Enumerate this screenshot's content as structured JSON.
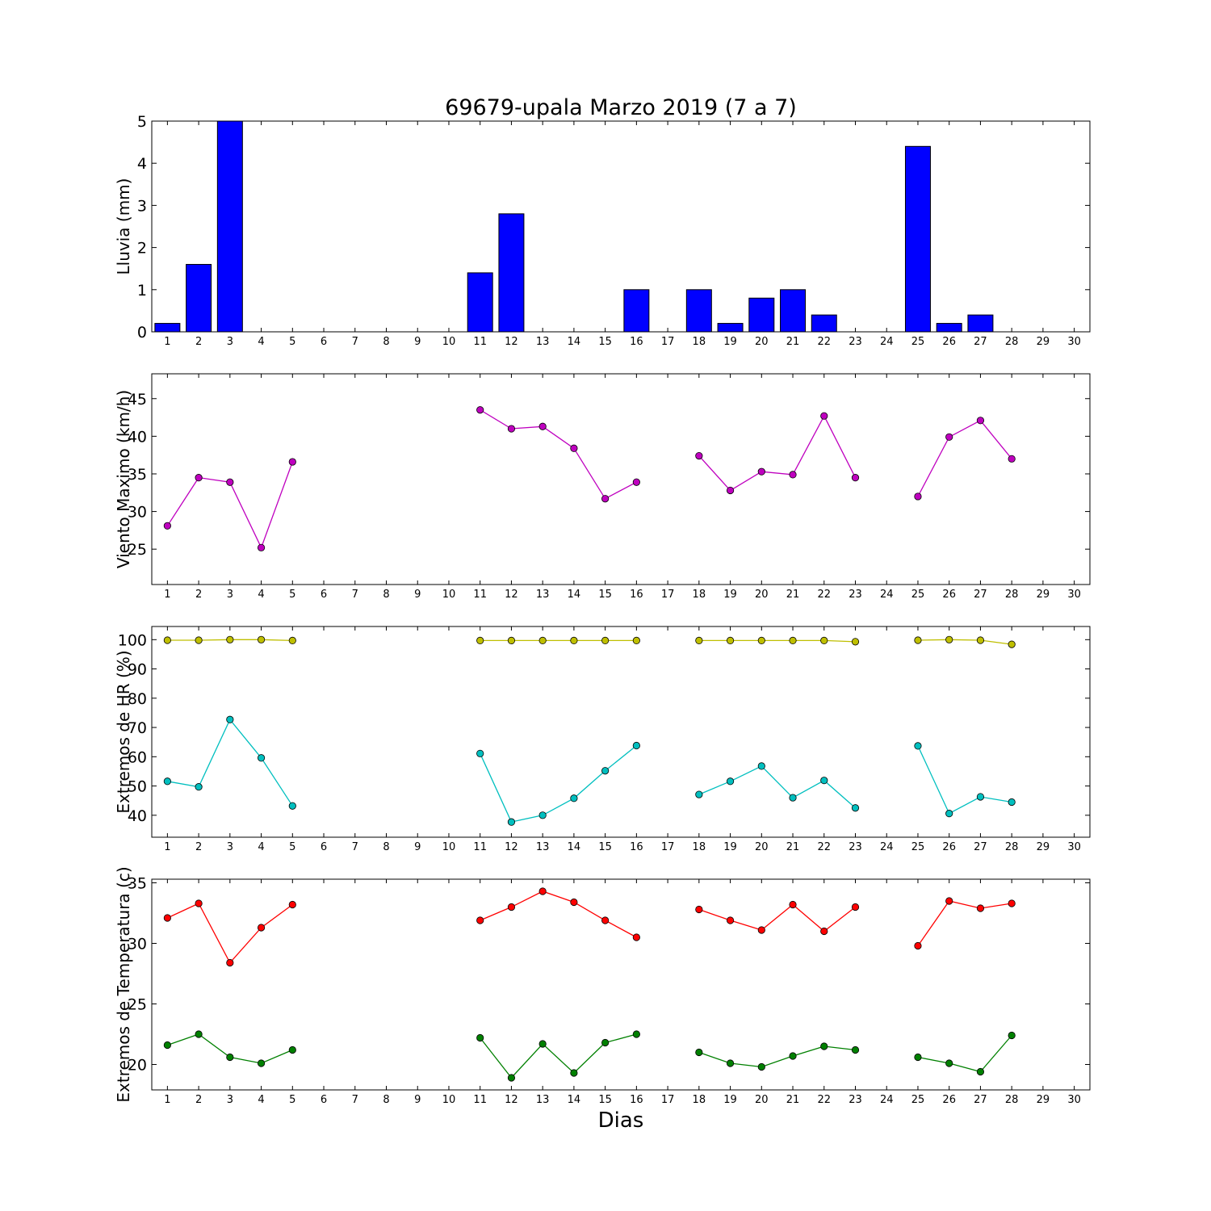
{
  "title": "69679-upala Marzo 2019  (7 a 7)",
  "xlabel": "Dias",
  "colors": {
    "rain_bar": "#0000ff",
    "wind": "#bf00bf",
    "rh_max": "#bfbf00",
    "rh_min": "#00bfbf",
    "temp_max": "#ff0000",
    "temp_min": "#008000"
  },
  "chart_data": [
    {
      "type": "bar",
      "ylabel": "Lluvia (mm)",
      "x": [
        1,
        2,
        3,
        4,
        5,
        6,
        7,
        8,
        9,
        10,
        11,
        12,
        13,
        14,
        15,
        16,
        17,
        18,
        19,
        20,
        21,
        22,
        23,
        24,
        25,
        26,
        27,
        28,
        29,
        30
      ],
      "xlim": [
        0.5,
        30.5
      ],
      "ylim": [
        0,
        5
      ],
      "yticks": [
        0,
        1,
        2,
        3,
        4,
        5
      ],
      "series": [
        {
          "values": [
            0.2,
            1.6,
            5.0,
            0,
            0,
            null,
            null,
            null,
            null,
            null,
            1.4,
            2.8,
            0,
            0,
            0,
            1.0,
            null,
            1.0,
            0.2,
            0.8,
            1.0,
            0.4,
            0,
            null,
            4.4,
            0.2,
            0.4,
            null,
            null,
            null
          ]
        }
      ]
    },
    {
      "type": "line",
      "ylabel": "Viento Maximo (km/h)",
      "x": [
        1,
        2,
        3,
        4,
        5,
        6,
        7,
        8,
        9,
        10,
        11,
        12,
        13,
        14,
        15,
        16,
        17,
        18,
        19,
        20,
        21,
        22,
        23,
        24,
        25,
        26,
        27,
        28,
        29,
        30
      ],
      "xlim": [
        0.5,
        30.5
      ],
      "ylim": [
        20.3,
        48.3
      ],
      "yticks": [
        25,
        30,
        35,
        40,
        45
      ],
      "series": [
        {
          "values": [
            28.1,
            34.5,
            33.9,
            25.2,
            36.6,
            null,
            null,
            null,
            null,
            null,
            43.5,
            41.0,
            41.3,
            38.4,
            31.7,
            33.9,
            null,
            37.4,
            32.8,
            35.3,
            34.9,
            42.7,
            34.5,
            null,
            32.0,
            39.9,
            42.1,
            37.0,
            null,
            null
          ]
        }
      ]
    },
    {
      "type": "line",
      "ylabel": "Extremos de HR (%)",
      "x": [
        1,
        2,
        3,
        4,
        5,
        6,
        7,
        8,
        9,
        10,
        11,
        12,
        13,
        14,
        15,
        16,
        17,
        18,
        19,
        20,
        21,
        22,
        23,
        24,
        25,
        26,
        27,
        28,
        29,
        30
      ],
      "xlim": [
        0.5,
        30.5
      ],
      "ylim": [
        32.5,
        104.5
      ],
      "yticks": [
        40,
        50,
        60,
        70,
        80,
        90,
        100
      ],
      "series": [
        {
          "values": [
            99.8,
            99.8,
            100,
            100,
            99.7,
            null,
            null,
            null,
            null,
            null,
            99.7,
            99.7,
            99.7,
            99.7,
            99.7,
            99.7,
            null,
            99.7,
            99.7,
            99.7,
            99.7,
            99.7,
            99.3,
            null,
            99.8,
            100,
            99.8,
            98.4,
            null,
            null
          ]
        },
        {
          "values": [
            51.6,
            49.7,
            72.7,
            59.6,
            43.2,
            null,
            null,
            null,
            null,
            null,
            61.1,
            37.7,
            40.0,
            45.8,
            55.2,
            63.8,
            null,
            47.1,
            51.6,
            56.8,
            46.0,
            51.9,
            42.5,
            null,
            63.7,
            40.6,
            46.3,
            44.5,
            null,
            null
          ]
        }
      ]
    },
    {
      "type": "line",
      "ylabel": "Extremos de Temperatura (c)",
      "x": [
        1,
        2,
        3,
        4,
        5,
        6,
        7,
        8,
        9,
        10,
        11,
        12,
        13,
        14,
        15,
        16,
        17,
        18,
        19,
        20,
        21,
        22,
        23,
        24,
        25,
        26,
        27,
        28,
        29,
        30
      ],
      "xlim": [
        0.5,
        30.5
      ],
      "ylim": [
        17.9,
        35.3
      ],
      "yticks": [
        20,
        25,
        30,
        35
      ],
      "series": [
        {
          "values": [
            32.1,
            33.3,
            28.4,
            31.3,
            33.2,
            null,
            null,
            null,
            null,
            null,
            31.9,
            33.0,
            34.3,
            33.4,
            31.9,
            30.5,
            null,
            32.8,
            31.9,
            31.1,
            33.2,
            31.0,
            33.0,
            null,
            29.8,
            33.5,
            32.9,
            33.3,
            null,
            null
          ]
        },
        {
          "values": [
            21.6,
            22.5,
            20.6,
            20.1,
            21.2,
            null,
            null,
            null,
            null,
            null,
            22.2,
            18.9,
            21.7,
            19.3,
            21.8,
            22.5,
            null,
            21.0,
            20.1,
            19.8,
            20.7,
            21.5,
            21.2,
            null,
            20.6,
            20.1,
            19.4,
            22.4,
            null,
            null
          ]
        }
      ]
    }
  ]
}
